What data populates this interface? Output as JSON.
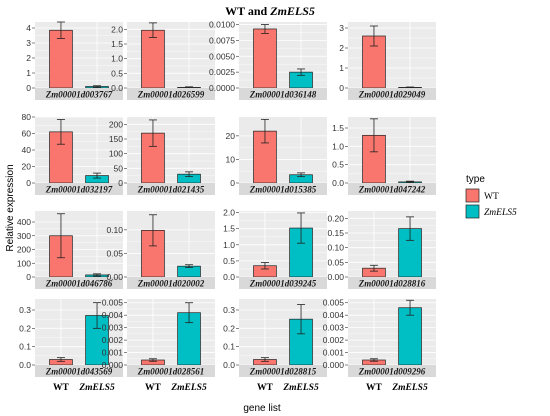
{
  "title": {
    "prefix": "WT and ",
    "emph": "ZmELS5"
  },
  "colors": {
    "WT": "#F8766D",
    "ZmELS5": "#00BFC4",
    "panel_bg": "#EBEBEB",
    "strip_bg": "#D9D9D9",
    "grid": "#FFFFFF"
  },
  "chart_data": {
    "type": "bar",
    "layout": "facet-grid 4x4, independent y-scales",
    "categories": [
      "WT",
      "ZmELS5"
    ],
    "xlabel": "gene list",
    "ylabel": "Relative expression",
    "legend": {
      "title": "type",
      "entries": [
        "WT",
        "ZmELS5"
      ],
      "position": "right"
    },
    "error_bars": true,
    "facets": [
      {
        "gene": "Zm00001d003767",
        "values": [
          3.85,
          0.1
        ],
        "errors": [
          0.55,
          0.05
        ],
        "ylim": [
          0,
          4.4
        ],
        "ticks": [
          "0",
          "1",
          "2",
          "3",
          "4"
        ],
        "tickvals": [
          0,
          1,
          2,
          3,
          4
        ]
      },
      {
        "gene": "Zm00001d026599",
        "values": [
          1.97,
          0.02
        ],
        "errors": [
          0.25,
          0.02
        ],
        "ylim": [
          0,
          2.25
        ],
        "ticks": [
          "0.0",
          "0.5",
          "1.0",
          "1.5",
          "2.0"
        ],
        "tickvals": [
          0,
          0.5,
          1,
          1.5,
          2
        ]
      },
      {
        "gene": "Zm00001d036148",
        "values": [
          0.0093,
          0.0025
        ],
        "errors": [
          0.0007,
          0.0005
        ],
        "ylim": [
          0,
          0.0104
        ],
        "ticks": [
          "0.0000",
          "0.0025",
          "0.0050",
          "0.0075",
          "0.0100"
        ],
        "tickvals": [
          0,
          0.0025,
          0.005,
          0.0075,
          0.01
        ]
      },
      {
        "gene": "Zm00001d029049",
        "values": [
          2.6,
          0.03
        ],
        "errors": [
          0.5,
          0.02
        ],
        "ylim": [
          0,
          3.3
        ],
        "ticks": [
          "0",
          "1",
          "2",
          "3"
        ],
        "tickvals": [
          0,
          1,
          2,
          3
        ]
      },
      {
        "gene": "Zm00001d032197",
        "values": [
          62,
          9
        ],
        "errors": [
          15,
          3
        ],
        "ylim": [
          0,
          80
        ],
        "ticks": [
          "0",
          "20",
          "40",
          "60",
          "80"
        ],
        "tickvals": [
          0,
          20,
          40,
          60,
          80
        ]
      },
      {
        "gene": "Zm00001d021435",
        "values": [
          170,
          30
        ],
        "errors": [
          45,
          8
        ],
        "ylim": [
          0,
          225
        ],
        "ticks": [
          "0",
          "50",
          "100",
          "150",
          "200"
        ],
        "tickvals": [
          0,
          50,
          100,
          150,
          200
        ]
      },
      {
        "gene": "Zm00001d015385",
        "values": [
          22,
          3.5
        ],
        "errors": [
          5,
          0.8
        ],
        "ylim": [
          0,
          28
        ],
        "ticks": [
          "0",
          "10",
          "20"
        ],
        "tickvals": [
          0,
          10,
          20
        ]
      },
      {
        "gene": "Zm00001d047242",
        "values": [
          1.3,
          0.03
        ],
        "errors": [
          0.45,
          0.02
        ],
        "ylim": [
          0,
          1.8
        ],
        "ticks": [
          "0.0",
          "0.5",
          "1.0",
          "1.5"
        ],
        "tickvals": [
          0,
          0.5,
          1,
          1.5
        ]
      },
      {
        "gene": "Zm00001d046786",
        "values": [
          300,
          15
        ],
        "errors": [
          160,
          8
        ],
        "ylim": [
          0,
          480
        ],
        "ticks": [
          "0",
          "100",
          "200",
          "300",
          "400"
        ],
        "tickvals": [
          0,
          100,
          200,
          300,
          400
        ]
      },
      {
        "gene": "Zm00001d020002",
        "values": [
          0.099,
          0.023
        ],
        "errors": [
          0.033,
          0.003
        ],
        "ylim": [
          0,
          0.14
        ],
        "ticks": [
          "0.00",
          "0.05",
          "0.10"
        ],
        "tickvals": [
          0,
          0.05,
          0.1
        ]
      },
      {
        "gene": "Zm00001d039245",
        "values": [
          0.35,
          1.52
        ],
        "errors": [
          0.1,
          0.47
        ],
        "ylim": [
          0,
          2.05
        ],
        "ticks": [
          "0.0",
          "0.5",
          "1.0",
          "1.5",
          "2.0"
        ],
        "tickvals": [
          0,
          0.5,
          1,
          1.5,
          2
        ]
      },
      {
        "gene": "Zm00001d028816",
        "values": [
          0.03,
          0.165
        ],
        "errors": [
          0.01,
          0.04
        ],
        "ylim": [
          0,
          0.225
        ],
        "ticks": [
          "0.00",
          "0.05",
          "0.10",
          "0.15",
          "0.20"
        ],
        "tickvals": [
          0,
          0.05,
          0.1,
          0.15,
          0.2
        ]
      },
      {
        "gene": "Zm00001d043569",
        "values": [
          0.03,
          0.27
        ],
        "errors": [
          0.01,
          0.07
        ],
        "ylim": [
          0,
          0.36
        ],
        "ticks": [
          "0.0",
          "0.1",
          "0.2",
          "0.3"
        ],
        "tickvals": [
          0,
          0.1,
          0.2,
          0.3
        ]
      },
      {
        "gene": "Zm00001d028561",
        "values": [
          0.0004,
          0.0042
        ],
        "errors": [
          0.0001,
          0.0008
        ],
        "ylim": [
          0,
          0.0053
        ],
        "ticks": [
          "0.000",
          "0.001",
          "0.002",
          "0.003",
          "0.004",
          "0.005"
        ],
        "tickvals": [
          0,
          0.001,
          0.002,
          0.003,
          0.004,
          0.005
        ]
      },
      {
        "gene": "Zm00001d028815",
        "values": [
          0.03,
          0.25
        ],
        "errors": [
          0.01,
          0.08
        ],
        "ylim": [
          0,
          0.36
        ],
        "ticks": [
          "0.0",
          "0.1",
          "0.2",
          "0.3"
        ],
        "tickvals": [
          0,
          0.1,
          0.2,
          0.3
        ]
      },
      {
        "gene": "Zm00001d009296",
        "values": [
          0.0004,
          0.0046
        ],
        "errors": [
          0.0001,
          0.0006
        ],
        "ylim": [
          0,
          0.0053
        ],
        "ticks": [
          "0.000",
          "0.001",
          "0.002",
          "0.003",
          "0.004",
          "0.005"
        ],
        "tickvals": [
          0,
          0.001,
          0.002,
          0.003,
          0.004,
          0.005
        ]
      }
    ]
  }
}
